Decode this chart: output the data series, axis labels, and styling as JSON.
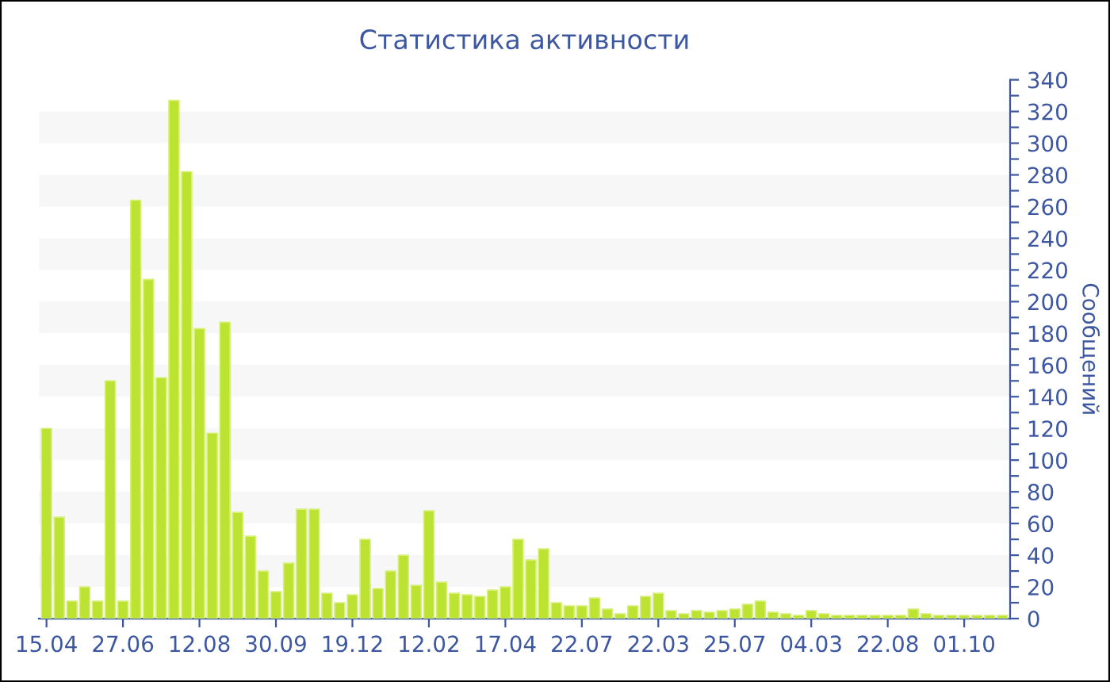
{
  "chart_data": {
    "type": "bar",
    "title": "Статистика активности",
    "ylabel": "Сообщений",
    "categories": [
      "15.04",
      null,
      null,
      null,
      null,
      null,
      "27.06",
      null,
      null,
      null,
      null,
      null,
      "12.08",
      null,
      null,
      null,
      null,
      null,
      "30.09",
      null,
      null,
      null,
      null,
      null,
      "19.12",
      null,
      null,
      null,
      null,
      null,
      "12.02",
      null,
      null,
      null,
      null,
      null,
      "17.04",
      null,
      null,
      null,
      null,
      null,
      "22.07",
      null,
      null,
      null,
      null,
      null,
      "22.03",
      null,
      null,
      null,
      null,
      null,
      "25.07",
      null,
      null,
      null,
      null,
      null,
      "04.03",
      null,
      null,
      null,
      null,
      null,
      "22.08",
      null,
      null,
      null,
      null,
      null,
      "01.10",
      null,
      null,
      null
    ],
    "values": [
      120,
      64,
      11,
      20,
      11,
      150,
      11,
      264,
      214,
      152,
      327,
      282,
      183,
      117,
      187,
      67,
      52,
      30,
      17,
      35,
      69,
      69,
      16,
      10,
      15,
      50,
      19,
      30,
      40,
      21,
      68,
      23,
      16,
      15,
      14,
      18,
      20,
      50,
      37,
      44,
      10,
      8,
      8,
      13,
      6,
      3,
      8,
      14,
      16,
      5,
      3,
      5,
      4,
      5,
      6,
      9,
      11,
      4,
      3,
      2,
      5,
      3,
      2,
      2,
      2,
      2,
      2,
      2,
      6,
      3,
      2,
      2,
      2,
      2,
      2,
      2
    ],
    "color": "#bce232",
    "ylim": [
      0,
      340
    ],
    "yticks": [
      0,
      {
        "value": 10,
        "label": null
      },
      20,
      {
        "value": 30,
        "label": null
      },
      40,
      {
        "value": 50,
        "label": null
      },
      60,
      {
        "value": 70,
        "label": null
      },
      80,
      {
        "value": 90,
        "label": null
      },
      100,
      {
        "value": 110,
        "label": null
      },
      120,
      {
        "value": 130,
        "label": null
      },
      140,
      {
        "value": 150,
        "label": null
      },
      160,
      {
        "value": 170,
        "label": null
      },
      180,
      {
        "value": 190,
        "label": null
      },
      200,
      {
        "value": 210,
        "label": null
      },
      220,
      {
        "value": 230,
        "label": null
      },
      240,
      {
        "value": 250,
        "label": null
      },
      260,
      {
        "value": 270,
        "label": null
      },
      280,
      {
        "value": 290,
        "label": null
      },
      300,
      {
        "value": 310,
        "label": null
      },
      320,
      {
        "value": 330,
        "label": null
      },
      340
    ],
    "bands": [
      {
        "axis": "y",
        "from": 20,
        "to": 40,
        "color": "#f7f7f7"
      },
      {
        "axis": "y",
        "from": 60,
        "to": 80,
        "color": "#f7f7f7"
      },
      {
        "axis": "y",
        "from": 100,
        "to": 120,
        "color": "#f7f7f7"
      },
      {
        "axis": "y",
        "from": 140,
        "to": 160,
        "color": "#f7f7f7"
      },
      {
        "axis": "y",
        "from": 180,
        "to": 200,
        "color": "#f7f7f7"
      },
      {
        "axis": "y",
        "from": 220,
        "to": 240,
        "color": "#f7f7f7"
      },
      {
        "axis": "y",
        "from": 260,
        "to": 280,
        "color": "#f7f7f7"
      },
      {
        "axis": "y",
        "from": 300,
        "to": 320,
        "color": "#f7f7f7"
      }
    ],
    "legend": false
  }
}
